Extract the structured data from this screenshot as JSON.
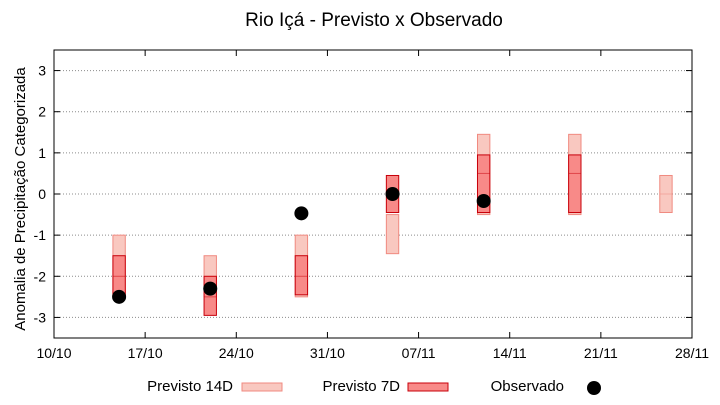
{
  "chart_data": {
    "type": "range_bar_scatter",
    "title": "Rio Içá - Previsto x Observado",
    "xlabel": "",
    "ylabel": "Anomalia de Precipitação Categorizada",
    "ylim": [
      -3.5,
      3.5
    ],
    "yticks": [
      3,
      2,
      1,
      0,
      -1,
      -2,
      -3
    ],
    "x_ticks": [
      "10/10",
      "17/10",
      "24/10",
      "31/10",
      "07/11",
      "14/11",
      "21/11",
      "28/11"
    ],
    "grid": true,
    "legend_position": "bottom",
    "series": [
      {
        "name": "Previsto 14D",
        "kind": "range",
        "fill": "#f9c8c0",
        "stroke": "#f08a80",
        "points": [
          {
            "x": "15/10",
            "low": -2.5,
            "mid": -2.0,
            "high": -1.0
          },
          {
            "x": "22/10",
            "low": -2.5,
            "mid": -2.0,
            "high": -1.5
          },
          {
            "x": "29/10",
            "low": -2.5,
            "mid": -2.0,
            "high": -1.0
          },
          {
            "x": "05/11",
            "low": -1.45,
            "mid": -0.5,
            "high": -0.5
          },
          {
            "x": "12/11",
            "low": -0.5,
            "mid": 0.5,
            "high": 1.45
          },
          {
            "x": "19/11",
            "low": -0.5,
            "mid": 0.5,
            "high": 1.45
          },
          {
            "x": "26/11",
            "low": -0.45,
            "mid": 0.0,
            "high": 0.45
          }
        ]
      },
      {
        "name": "Previsto 7D",
        "kind": "range",
        "fill": "#f88a88",
        "stroke": "#c8000a",
        "points": [
          {
            "x": "15/10",
            "low": -2.5,
            "mid": -2.0,
            "high": -1.5
          },
          {
            "x": "22/10",
            "low": -2.95,
            "mid": -2.5,
            "high": -2.0
          },
          {
            "x": "29/10",
            "low": -2.45,
            "mid": -2.0,
            "high": -1.5
          },
          {
            "x": "05/11",
            "low": -0.45,
            "mid": 0.0,
            "high": 0.45
          },
          {
            "x": "12/11",
            "low": -0.45,
            "mid": 0.5,
            "high": 0.95
          },
          {
            "x": "19/11",
            "low": -0.45,
            "mid": 0.5,
            "high": 0.95
          }
        ]
      },
      {
        "name": "Observado",
        "kind": "point",
        "color": "#000000",
        "points": [
          {
            "x": "15/10",
            "y": -2.5
          },
          {
            "x": "22/10",
            "y": -2.3
          },
          {
            "x": "29/10",
            "y": -0.47
          },
          {
            "x": "05/11",
            "y": 0.0
          },
          {
            "x": "12/11",
            "y": -0.17
          }
        ]
      }
    ]
  }
}
